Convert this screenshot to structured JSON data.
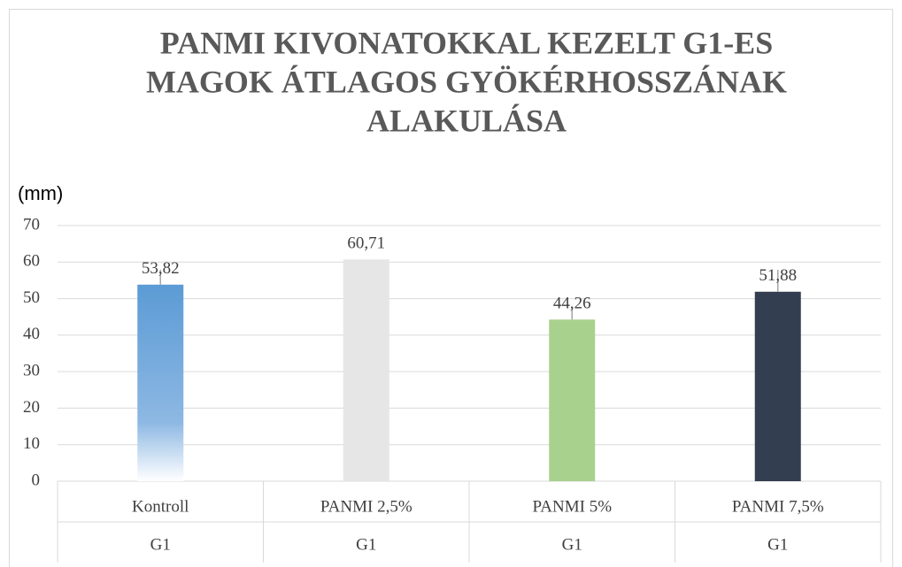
{
  "chart_data": {
    "type": "bar",
    "title": [
      "PANMI KIVONATOKKAL KEZELT G1-ES",
      "MAGOK ÁTLAGOS GYÖKÉRHOSSZÁNAK",
      "ALAKULÁSA"
    ],
    "y_label": "(mm)",
    "categories": [
      "Kontroll",
      "PANMI 2,5%",
      "PANMI 5%",
      "PANMI 7,5%"
    ],
    "group_labels": [
      "G1",
      "G1",
      "G1",
      "G1"
    ],
    "values": [
      53.82,
      60.71,
      44.26,
      51.88
    ],
    "value_labels": [
      "53,82",
      "60,71",
      "44,26",
      "51,88"
    ],
    "errors": [
      4.1,
      null,
      3.4,
      6.0
    ],
    "colors": [
      "#5b9bd5",
      "#e7e6e6",
      "#a9d18e",
      "#333f50"
    ],
    "fill_style": [
      "gradient",
      "solid",
      "solid",
      "solid"
    ],
    "ylim": [
      0,
      70
    ],
    "yticks": [
      0,
      10,
      20,
      30,
      40,
      50,
      60,
      70
    ],
    "grid": true
  }
}
